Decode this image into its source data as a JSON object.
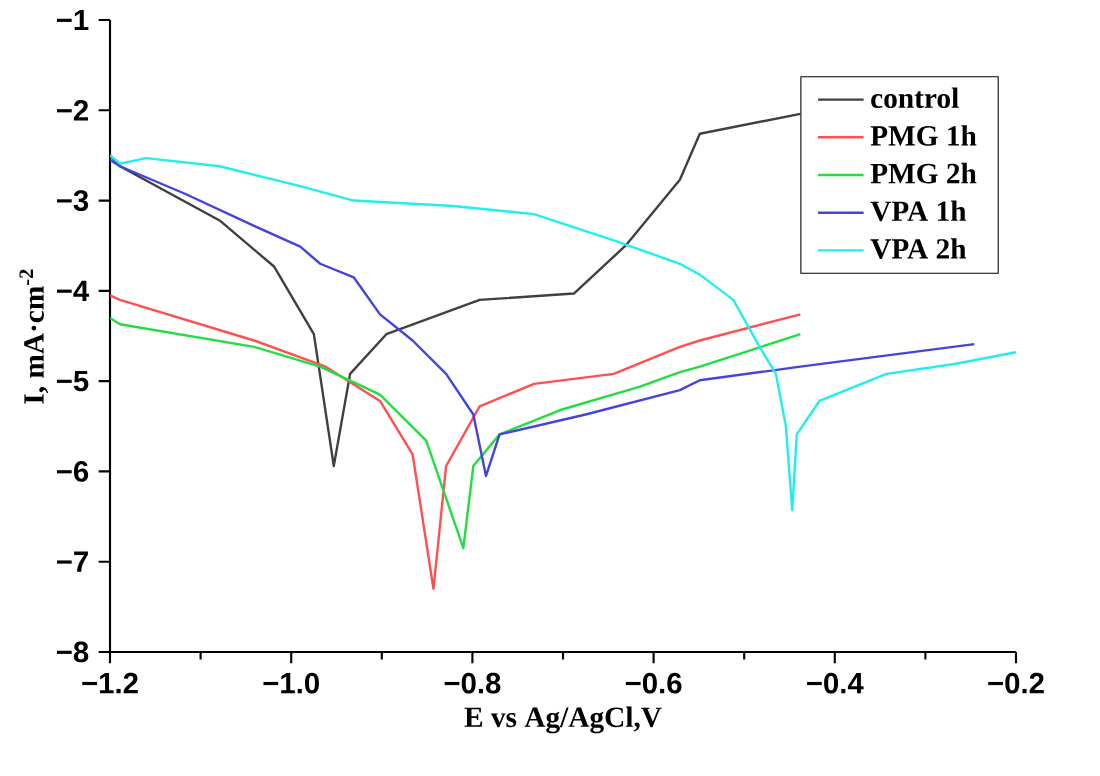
{
  "chart_data": {
    "type": "line",
    "xlabel": "E vs Ag/AgCl,V",
    "ylabel": "I, mA·cm$^{-2}$",
    "xlim": [
      -1.2,
      -0.2
    ],
    "ylim": [
      -8,
      -1
    ],
    "xticks": [
      {
        "value": -1.2,
        "label": "−1.2"
      },
      {
        "value": -1.0,
        "label": "−1.0"
      },
      {
        "value": -0.8,
        "label": "−0.8"
      },
      {
        "value": -0.6,
        "label": "−0.6"
      },
      {
        "value": -0.4,
        "label": "−0.4"
      },
      {
        "value": -0.2,
        "label": "−0.2"
      }
    ],
    "yticks": [
      {
        "value": -8,
        "label": "−8"
      },
      {
        "value": -7,
        "label": "−7"
      },
      {
        "value": -6,
        "label": "−6"
      },
      {
        "value": -5,
        "label": "−5"
      },
      {
        "value": -4,
        "label": "−4"
      },
      {
        "value": -3,
        "label": "−3"
      },
      {
        "value": -2,
        "label": "−2"
      },
      {
        "value": -1,
        "label": "−1"
      }
    ],
    "grid": false,
    "legend": "top right",
    "marker": "none",
    "line_style": "solid",
    "series": [
      {
        "name": "control",
        "color": "#404040",
        "x": [
          -1.2,
          -1.189,
          -1.079,
          -1.019,
          -0.975,
          -0.953,
          -0.935,
          -0.895,
          -0.792,
          -0.688,
          -0.631,
          -0.571,
          -0.549,
          -0.438
        ],
        "values": [
          -2.5,
          -2.62,
          -3.22,
          -3.73,
          -4.48,
          -5.94,
          -4.92,
          -4.48,
          -4.1,
          -4.03,
          -3.5,
          -2.77,
          -2.26,
          -2.04
        ]
      },
      {
        "name": "PMG 1h",
        "color": "#ff5050",
        "x": [
          -1.2,
          -1.189,
          -1.041,
          -0.962,
          -0.902,
          -0.866,
          -0.843,
          -0.829,
          -0.792,
          -0.732,
          -0.644,
          -0.571,
          -0.549,
          -0.438
        ],
        "values": [
          -4.05,
          -4.1,
          -4.55,
          -4.84,
          -5.22,
          -5.81,
          -7.3,
          -5.94,
          -5.28,
          -5.03,
          -4.92,
          -4.62,
          -4.55,
          -4.26
        ]
      },
      {
        "name": "PMG 2h",
        "color": "#22dd44",
        "x": [
          -1.2,
          -1.189,
          -1.041,
          -0.968,
          -0.902,
          -0.851,
          -0.81,
          -0.799,
          -0.77,
          -0.703,
          -0.615,
          -0.571,
          -0.549,
          -0.438
        ],
        "values": [
          -4.3,
          -4.37,
          -4.62,
          -4.84,
          -5.15,
          -5.66,
          -6.85,
          -5.94,
          -5.59,
          -5.32,
          -5.06,
          -4.9,
          -4.84,
          -4.48
        ]
      },
      {
        "name": "VPA 1h",
        "color": "#4444dd",
        "x": [
          -1.2,
          -1.189,
          -1.116,
          -1.041,
          -0.99,
          -0.968,
          -0.931,
          -0.902,
          -0.866,
          -0.829,
          -0.799,
          -0.785,
          -0.77,
          -0.675,
          -0.571,
          -0.549,
          -0.438,
          -0.246
        ],
        "values": [
          -2.55,
          -2.62,
          -2.93,
          -3.28,
          -3.51,
          -3.7,
          -3.85,
          -4.26,
          -4.55,
          -4.92,
          -5.37,
          -6.05,
          -5.59,
          -5.37,
          -5.1,
          -4.99,
          -4.84,
          -4.59
        ]
      },
      {
        "name": "VPA 2h",
        "color": "#22eeee",
        "x": [
          -1.2,
          -1.189,
          -1.16,
          -1.079,
          -0.99,
          -0.931,
          -0.821,
          -0.732,
          -0.644,
          -0.571,
          -0.549,
          -0.512,
          -0.483,
          -0.465,
          -0.454,
          -0.447,
          -0.442,
          -0.417,
          -0.343,
          -0.268,
          -0.2
        ],
        "values": [
          -2.5,
          -2.59,
          -2.53,
          -2.62,
          -2.84,
          -3.0,
          -3.06,
          -3.15,
          -3.44,
          -3.7,
          -3.82,
          -4.1,
          -4.62,
          -4.92,
          -5.5,
          -6.43,
          -5.59,
          -5.22,
          -4.92,
          -4.81,
          -4.68
        ]
      }
    ]
  }
}
